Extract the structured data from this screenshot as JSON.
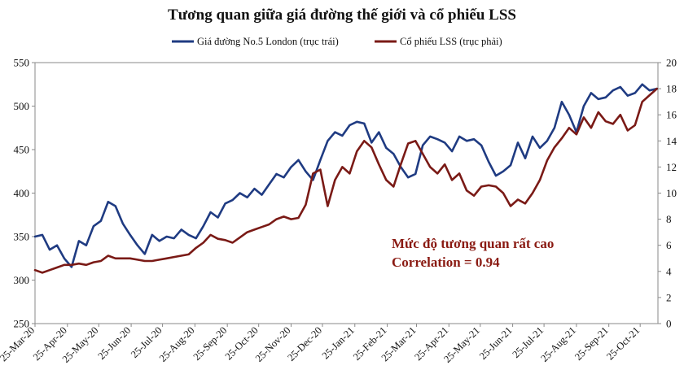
{
  "chart_data": {
    "type": "line",
    "title": "Tương quan giữa giá đường thế giới và cổ phiếu LSS",
    "x_tick_labels": [
      "25-Mar-20",
      "25-Apr-20",
      "25-May-20",
      "25-Jun-20",
      "25-Jul-20",
      "25-Aug-20",
      "25-Sep-20",
      "25-Oct-20",
      "25-Nov-20",
      "25-Dec-20",
      "25-Jan-21",
      "25-Feb-21",
      "25-Mar-21",
      "25-Apr-21",
      "25-May-21",
      "25-Jun-21",
      "25-Jul-21",
      "25-Aug-21",
      "25-Sep-21",
      "25-Oct-21"
    ],
    "y_left": {
      "min": 250,
      "max": 550,
      "ticks": [
        "250",
        "300",
        "350",
        "400",
        "450",
        "500",
        "550"
      ]
    },
    "y_right": {
      "min": 0,
      "max": 20,
      "ticks": [
        "0",
        "2",
        "4",
        "6",
        "8",
        "10",
        "12",
        "14",
        "16",
        "18",
        "20"
      ]
    },
    "grid": false,
    "legend_position": "top",
    "series": [
      {
        "name": "Giá  đường No.5  London (trục trái)",
        "axis": "left",
        "color": "#1f3b82",
        "x": [
          "2020-03-25",
          "2020-04-01",
          "2020-04-08",
          "2020-04-15",
          "2020-04-22",
          "2020-04-29",
          "2020-05-06",
          "2020-05-13",
          "2020-05-20",
          "2020-05-27",
          "2020-06-03",
          "2020-06-10",
          "2020-06-17",
          "2020-06-24",
          "2020-07-01",
          "2020-07-08",
          "2020-07-15",
          "2020-07-22",
          "2020-07-29",
          "2020-08-05",
          "2020-08-12",
          "2020-08-19",
          "2020-08-26",
          "2020-09-02",
          "2020-09-09",
          "2020-09-16",
          "2020-09-23",
          "2020-09-30",
          "2020-10-07",
          "2020-10-14",
          "2020-10-21",
          "2020-10-28",
          "2020-11-04",
          "2020-11-11",
          "2020-11-18",
          "2020-11-25",
          "2020-12-02",
          "2020-12-09",
          "2020-12-16",
          "2020-12-23",
          "2020-12-30",
          "2021-01-06",
          "2021-01-13",
          "2021-01-20",
          "2021-01-27",
          "2021-02-03",
          "2021-02-10",
          "2021-02-17",
          "2021-02-24",
          "2021-03-03",
          "2021-03-10",
          "2021-03-17",
          "2021-03-24",
          "2021-03-31",
          "2021-04-07",
          "2021-04-14",
          "2021-04-21",
          "2021-04-28",
          "2021-05-05",
          "2021-05-12",
          "2021-05-19",
          "2021-05-26",
          "2021-06-02",
          "2021-06-09",
          "2021-06-16",
          "2021-06-23",
          "2021-06-30",
          "2021-07-07",
          "2021-07-14",
          "2021-07-21",
          "2021-07-28",
          "2021-08-04",
          "2021-08-11",
          "2021-08-18",
          "2021-08-25",
          "2021-09-01",
          "2021-09-08",
          "2021-09-15",
          "2021-09-22",
          "2021-09-29",
          "2021-10-06",
          "2021-10-13",
          "2021-10-20",
          "2021-10-27",
          "2021-11-03",
          "2021-11-10"
        ],
        "values": [
          350,
          352,
          335,
          340,
          325,
          315,
          345,
          340,
          362,
          368,
          390,
          385,
          365,
          352,
          340,
          330,
          352,
          345,
          350,
          348,
          358,
          352,
          348,
          362,
          378,
          372,
          388,
          392,
          400,
          395,
          405,
          398,
          410,
          422,
          418,
          430,
          438,
          425,
          415,
          438,
          460,
          470,
          466,
          478,
          482,
          480,
          458,
          470,
          452,
          445,
          430,
          418,
          422,
          455,
          465,
          462,
          458,
          448,
          465,
          460,
          462,
          455,
          436,
          420,
          425,
          432,
          458,
          440,
          465,
          452,
          460,
          475,
          505,
          490,
          470,
          500,
          515,
          508,
          510,
          518,
          522,
          512,
          515,
          525,
          518,
          520
        ]
      },
      {
        "name": "Cổ phiếu LSS  (trục phải)",
        "axis": "right",
        "color": "#7a1a16",
        "x": [
          "2020-03-25",
          "2020-04-01",
          "2020-04-08",
          "2020-04-15",
          "2020-04-22",
          "2020-04-29",
          "2020-05-06",
          "2020-05-13",
          "2020-05-20",
          "2020-05-27",
          "2020-06-03",
          "2020-06-10",
          "2020-06-17",
          "2020-06-24",
          "2020-07-01",
          "2020-07-08",
          "2020-07-15",
          "2020-07-22",
          "2020-07-29",
          "2020-08-05",
          "2020-08-12",
          "2020-08-19",
          "2020-08-26",
          "2020-09-02",
          "2020-09-09",
          "2020-09-16",
          "2020-09-23",
          "2020-09-30",
          "2020-10-07",
          "2020-10-14",
          "2020-10-21",
          "2020-10-28",
          "2020-11-04",
          "2020-11-11",
          "2020-11-18",
          "2020-11-25",
          "2020-12-02",
          "2020-12-09",
          "2020-12-16",
          "2020-12-23",
          "2020-12-30",
          "2021-01-06",
          "2021-01-13",
          "2021-01-20",
          "2021-01-27",
          "2021-02-03",
          "2021-02-10",
          "2021-02-17",
          "2021-02-24",
          "2021-03-03",
          "2021-03-10",
          "2021-03-17",
          "2021-03-24",
          "2021-03-31",
          "2021-04-07",
          "2021-04-14",
          "2021-04-21",
          "2021-04-28",
          "2021-05-05",
          "2021-05-12",
          "2021-05-19",
          "2021-05-26",
          "2021-06-02",
          "2021-06-09",
          "2021-06-16",
          "2021-06-23",
          "2021-06-30",
          "2021-07-07",
          "2021-07-14",
          "2021-07-21",
          "2021-07-28",
          "2021-08-04",
          "2021-08-11",
          "2021-08-18",
          "2021-08-25",
          "2021-09-01",
          "2021-09-08",
          "2021-09-15",
          "2021-09-22",
          "2021-09-29",
          "2021-10-06",
          "2021-10-13",
          "2021-10-20",
          "2021-10-27",
          "2021-11-03",
          "2021-11-10"
        ],
        "values": [
          4.1,
          3.9,
          4.1,
          4.3,
          4.5,
          4.5,
          4.6,
          4.5,
          4.7,
          4.8,
          5.2,
          5.0,
          5.0,
          5.0,
          4.9,
          4.8,
          4.8,
          4.9,
          5.0,
          5.1,
          5.2,
          5.3,
          5.8,
          6.2,
          6.8,
          6.5,
          6.4,
          6.2,
          6.6,
          7.0,
          7.2,
          7.4,
          7.6,
          8.0,
          8.2,
          8.0,
          8.1,
          9.1,
          11.5,
          11.8,
          9.0,
          11.0,
          12.0,
          11.5,
          13.2,
          14.0,
          13.5,
          12.2,
          11.0,
          10.5,
          12.2,
          13.8,
          14.0,
          13.0,
          12.0,
          11.5,
          12.2,
          11.0,
          11.5,
          10.2,
          9.8,
          10.5,
          10.6,
          10.5,
          10.0,
          9.0,
          9.5,
          9.2,
          10.0,
          11.0,
          12.5,
          13.5,
          14.2,
          15.0,
          14.5,
          15.8,
          15.0,
          16.2,
          15.5,
          15.3,
          16.0,
          14.8,
          15.2,
          17.0,
          17.5,
          18.0
        ]
      }
    ],
    "annotations": [
      "Mức độ tương quan rất cao",
      "Correlation = 0.94"
    ]
  }
}
